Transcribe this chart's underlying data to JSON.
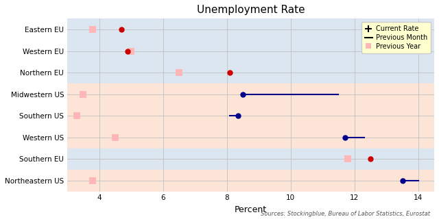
{
  "title": "Unemployment Rate",
  "xlabel": "Percent",
  "source_text": "Sources: Stockingblue, Bureau of Labor Statistics, Eurostat",
  "categories": [
    "Eastern EU",
    "Western EU",
    "Northern EU",
    "Midwestern US",
    "Southern US",
    "Western US",
    "Southern EU",
    "Northeastern US"
  ],
  "current_rate": [
    4.7,
    4.9,
    8.1,
    8.5,
    8.35,
    11.7,
    12.5,
    13.5
  ],
  "previous_month": [
    null,
    null,
    null,
    11.5,
    8.1,
    12.3,
    null,
    14.0
  ],
  "previous_year": [
    3.8,
    5.0,
    6.5,
    3.5,
    3.3,
    4.5,
    11.8,
    3.8
  ],
  "is_us": [
    false,
    false,
    false,
    true,
    true,
    true,
    false,
    true
  ],
  "eu_bg": "#dce6f1",
  "us_bg": "#fce4d6",
  "current_color_eu": "#cc0000",
  "current_color_us": "#00008b",
  "prev_month_color_eu": "#cc0000",
  "prev_month_color_us": "#00008b",
  "prev_year_color": "#ffb6b6",
  "xlim": [
    3.0,
    14.5
  ],
  "ylim": [
    -0.5,
    7.5
  ],
  "legend_bg": "#ffffd0",
  "figsize": [
    6.4,
    3.2
  ],
  "dpi": 100
}
